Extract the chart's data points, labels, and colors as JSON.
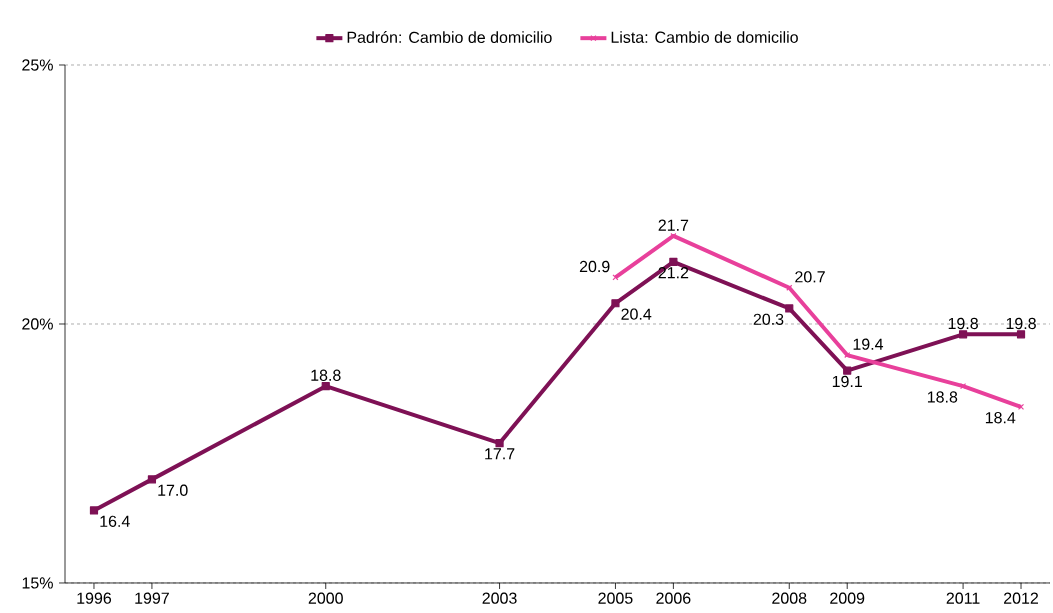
{
  "chart_data": {
    "type": "line",
    "x": [
      1996,
      1997,
      2000,
      2003,
      2005,
      2006,
      2008,
      2009,
      2011,
      2012
    ],
    "xlim": [
      1995.5,
      2012.5
    ],
    "xticks": [
      1996,
      1997,
      2000,
      2003,
      2005,
      2006,
      2008,
      2009,
      2011,
      2012
    ],
    "ylim": [
      15,
      25
    ],
    "yticks": [
      {
        "value": 15,
        "label": "15%"
      },
      {
        "value": 20,
        "label": "20%"
      },
      {
        "value": 25,
        "label": "25%"
      }
    ],
    "grid": "y",
    "legend": "top",
    "series": [
      {
        "name": "Padrón: Cambio de domicilio",
        "color": "#7e1155",
        "marker": "square",
        "values": [
          16.4,
          17.0,
          18.8,
          17.7,
          20.4,
          21.2,
          20.3,
          19.1,
          19.8,
          19.8
        ],
        "value_labels": [
          "16.4",
          "17.0",
          "18.8",
          "17.7",
          "20.4",
          "21.2",
          "20.3",
          "19.1",
          "19.8",
          "19.8"
        ]
      },
      {
        "name": "Lista: Cambio de domicilio",
        "color": "#e8409b",
        "marker": "cross",
        "x": [
          2005,
          2006,
          2008,
          2009,
          2011,
          2012
        ],
        "values": [
          20.9,
          21.7,
          20.7,
          19.4,
          18.8,
          18.4
        ],
        "value_labels": [
          "20.9",
          "21.7",
          "20.7",
          "19.4",
          "18.8",
          "18.4"
        ]
      }
    ]
  }
}
